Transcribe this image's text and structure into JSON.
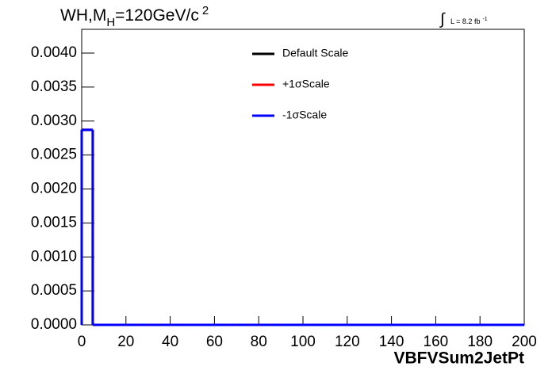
{
  "chart_data": {
    "type": "histogram",
    "title": {
      "main": "WH,M",
      "sub": "H",
      "rest": "=120GeV/c",
      "sup": "2"
    },
    "luminosity": {
      "integral": "∫",
      "text": "L = 8.2 fb",
      "sup": "-1"
    },
    "x_label": "VBFVSum2JetPt",
    "bins": [
      0,
      5,
      10,
      15,
      20,
      25,
      30,
      35,
      40,
      45,
      50,
      55,
      60,
      65,
      70,
      75,
      80,
      85,
      90,
      95,
      100,
      105,
      110,
      115,
      120,
      125,
      130,
      135,
      140,
      145,
      150,
      155,
      160,
      165,
      170,
      175,
      180,
      185,
      190,
      195,
      200
    ],
    "series": [
      {
        "name": "Default Scale",
        "color": "#000000",
        "values": [
          0.00287,
          0,
          0,
          0,
          0,
          0,
          0,
          0,
          0,
          0,
          0,
          0,
          0,
          0,
          0,
          0,
          0,
          0,
          0,
          0,
          0,
          0,
          0,
          0,
          0,
          0,
          0,
          0,
          0,
          0,
          0,
          0,
          0,
          0,
          0,
          0,
          0,
          0,
          0,
          0
        ]
      },
      {
        "name": "+1σScale",
        "color": "#ff0000",
        "values": [
          0.00287,
          0,
          0,
          0,
          0,
          0,
          0,
          0,
          0,
          0,
          0,
          0,
          0,
          0,
          0,
          0,
          0,
          0,
          0,
          0,
          0,
          0,
          0,
          0,
          0,
          0,
          0,
          0,
          0,
          0,
          0,
          0,
          0,
          0,
          0,
          0,
          0,
          0,
          0,
          0
        ]
      },
      {
        "name": "-1σScale",
        "color": "#0000ff",
        "values": [
          0.00287,
          0,
          0,
          0,
          0,
          0,
          0,
          0,
          0,
          0,
          0,
          0,
          0,
          0,
          0,
          0,
          0,
          0,
          0,
          0,
          0,
          0,
          0,
          0,
          0,
          0,
          0,
          0,
          0,
          0,
          0,
          0,
          0,
          0,
          0,
          0,
          0,
          0,
          0,
          0
        ]
      }
    ],
    "xlim": [
      0,
      200
    ],
    "xticks": [
      0,
      20,
      40,
      60,
      80,
      100,
      120,
      140,
      160,
      180,
      200
    ],
    "ylim": [
      0,
      0.00435
    ],
    "yticks": [
      {
        "value": 0,
        "label": "0.0000"
      },
      {
        "value": 0.0005,
        "label": "0.0005"
      },
      {
        "value": 0.001,
        "label": "0.0010"
      },
      {
        "value": 0.0015,
        "label": "0.0015"
      },
      {
        "value": 0.002,
        "label": "0.0020"
      },
      {
        "value": 0.0025,
        "label": "0.0025"
      },
      {
        "value": 0.003,
        "label": "0.0030"
      },
      {
        "value": 0.0035,
        "label": "0.0035"
      },
      {
        "value": 0.004,
        "label": "0.0040"
      }
    ],
    "legend": "top-center"
  }
}
